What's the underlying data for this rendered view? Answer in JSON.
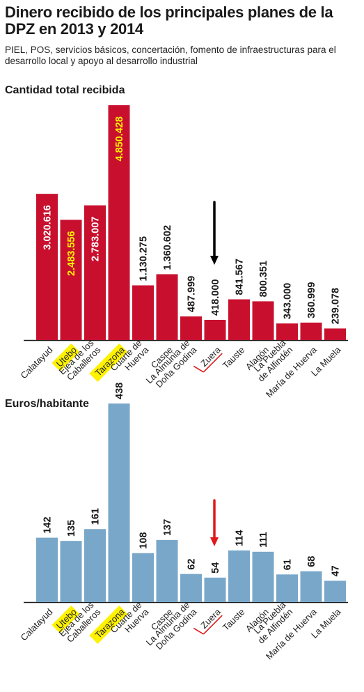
{
  "header": {
    "title": "Dinero recibido de los principales planes de la DPZ en 2013 y 2014",
    "subtitle": "PIEL, POS, servicios básicos, concertación, fomento de infraestructuras para el desarrollo local y apoyo al desarrollo industrial"
  },
  "colors": {
    "total_bar": "#c8102e",
    "per_capita_bar": "#79a7c9",
    "highlight": "#fff200",
    "arrow_black": "#000000",
    "arrow_red": "#e0191b"
  },
  "chart_data": [
    {
      "type": "bar",
      "title": "Cantidad total recibida",
      "categories": [
        "Calatayud",
        "Utebo",
        "Ejea de los Caballeros",
        "Tarazona",
        "Cuarte de Huerva",
        "Caspe",
        "La Almunia de Doña Godina",
        "Zuera",
        "Tauste",
        "Alagón",
        "La Puebla de Alfindén",
        "María de Huerva",
        "La Muela"
      ],
      "category_label_lines": [
        [
          "Calatayud"
        ],
        [
          "Utebo"
        ],
        [
          "Ejea de los",
          "Caballeros"
        ],
        [
          "Tarazona"
        ],
        [
          "Cuarte de",
          "Huerva"
        ],
        [
          "Caspe"
        ],
        [
          "La Almunia de",
          "Doña Godina"
        ],
        [
          "Zuera"
        ],
        [
          "Tauste"
        ],
        [
          "Alagón"
        ],
        [
          "La Puebla",
          "de Alfindén"
        ],
        [
          "María de Huerva"
        ],
        [
          "La Muela"
        ]
      ],
      "values": [
        3020616,
        2483556,
        2783007,
        4850428,
        1130275,
        1360602,
        487999,
        418000,
        841567,
        800351,
        343000,
        360999,
        239078
      ],
      "value_labels": [
        "3.020.616",
        "2.483.556",
        "2.783.007",
        "4.850.428",
        "1.130.275",
        "1.360.602",
        "487.999",
        "418.000",
        "841.567",
        "800.351",
        "343.000",
        "360.999",
        "239.078"
      ],
      "ylim": [
        0,
        4850428
      ],
      "highlighted": [
        "Utebo",
        "Tarazona"
      ],
      "marked": "Zuera",
      "grid": false
    },
    {
      "type": "bar",
      "title": "Euros/habitante",
      "categories": [
        "Calatayud",
        "Utebo",
        "Ejea de los Caballeros",
        "Tarazona",
        "Cuarte de Huerva",
        "Caspe",
        "La Almunia de Doña Godina",
        "Zuera",
        "Tauste",
        "Alagón",
        "La Puebla de Alfindén",
        "María de Huerva",
        "La Muela"
      ],
      "category_label_lines": [
        [
          "Calatayud"
        ],
        [
          "Utebo"
        ],
        [
          "Ejea de los",
          "Caballeros"
        ],
        [
          "Tarazona"
        ],
        [
          "Cuarte de",
          "Huerva"
        ],
        [
          "Caspe"
        ],
        [
          "La Almunia de",
          "Doña Godina"
        ],
        [
          "Zuera"
        ],
        [
          "Tauste"
        ],
        [
          "Alagón"
        ],
        [
          "La Puebla",
          "de Alfindén"
        ],
        [
          "María de Huerva"
        ],
        [
          "La Muela"
        ]
      ],
      "values": [
        142,
        135,
        161,
        438,
        108,
        137,
        62,
        54,
        114,
        111,
        61,
        68,
        47
      ],
      "value_labels": [
        "142",
        "135",
        "161",
        "438",
        "108",
        "137",
        "62",
        "54",
        "114",
        "111",
        "61",
        "68",
        "47"
      ],
      "ylim": [
        0,
        438
      ],
      "highlighted": [
        "Utebo",
        "Tarazona"
      ],
      "marked": "Zuera",
      "grid": false
    }
  ]
}
